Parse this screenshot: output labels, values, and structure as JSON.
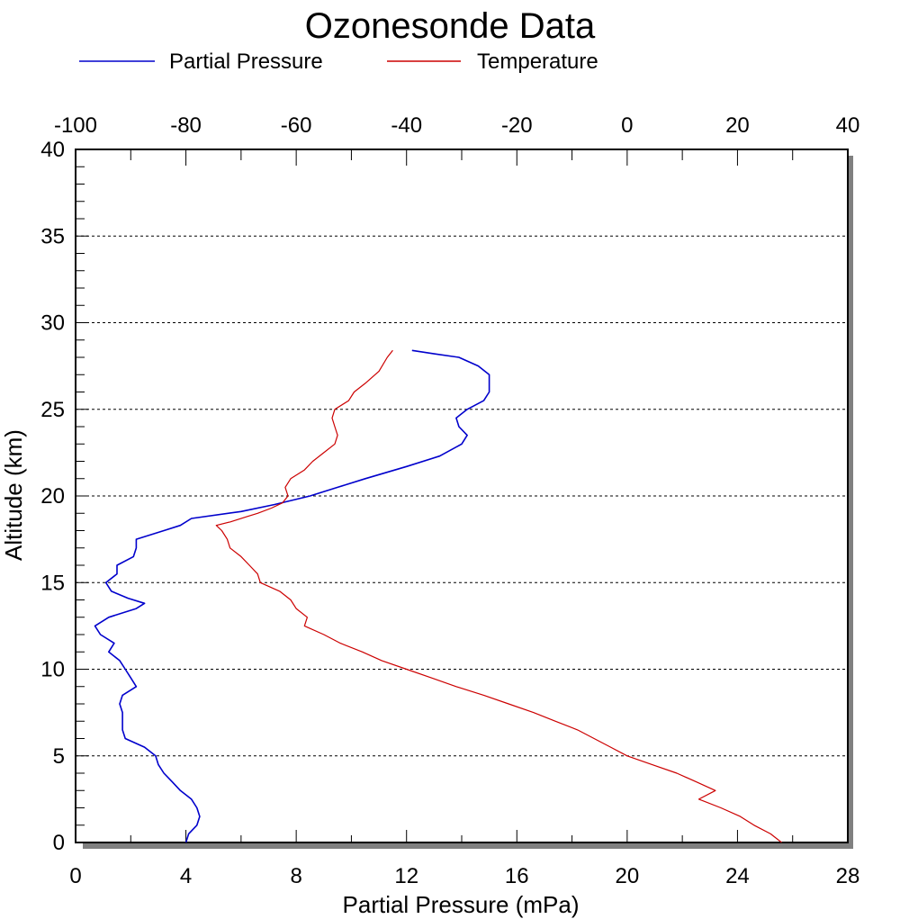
{
  "chart_data": {
    "type": "line",
    "title": "Ozonesonde Data",
    "ylabel": "Altitude (km)",
    "xlabel_bottom": "Partial Pressure (mPa)",
    "xlabel_top": "",
    "grid": "horizontal dotted lines",
    "legend_position": "top",
    "bottom_axis": {
      "min": 0,
      "max": 28,
      "ticks": [
        "0",
        "4",
        "8",
        "12",
        "16",
        "20",
        "24",
        "28"
      ]
    },
    "top_axis": {
      "min": -100,
      "max": 40,
      "ticks": [
        "-100",
        "-80",
        "-60",
        "-40",
        "-20",
        "0",
        "20",
        "40"
      ]
    },
    "left_axis": {
      "min": 0,
      "max": 40,
      "ticks": [
        "0",
        "5",
        "10",
        "15",
        "20",
        "25",
        "30",
        "35",
        "40"
      ]
    },
    "series": [
      {
        "name": "Partial Pressure",
        "axis": "bottom",
        "color": "#0000cc",
        "points": [
          [
            4.0,
            0.0
          ],
          [
            4.1,
            0.5
          ],
          [
            4.4,
            1.0
          ],
          [
            4.5,
            1.5
          ],
          [
            4.4,
            2.0
          ],
          [
            4.2,
            2.5
          ],
          [
            3.8,
            3.0
          ],
          [
            3.5,
            3.5
          ],
          [
            3.2,
            4.0
          ],
          [
            3.0,
            4.5
          ],
          [
            2.9,
            5.0
          ],
          [
            2.5,
            5.5
          ],
          [
            1.8,
            6.0
          ],
          [
            1.7,
            6.5
          ],
          [
            1.7,
            7.0
          ],
          [
            1.7,
            7.5
          ],
          [
            1.6,
            8.0
          ],
          [
            1.7,
            8.5
          ],
          [
            2.2,
            9.0
          ],
          [
            2.0,
            9.5
          ],
          [
            1.8,
            10.0
          ],
          [
            1.6,
            10.5
          ],
          [
            1.2,
            11.0
          ],
          [
            1.4,
            11.5
          ],
          [
            0.9,
            12.0
          ],
          [
            0.7,
            12.5
          ],
          [
            1.2,
            13.0
          ],
          [
            2.2,
            13.5
          ],
          [
            2.5,
            13.8
          ],
          [
            1.9,
            14.1
          ],
          [
            1.3,
            14.5
          ],
          [
            1.1,
            15.0
          ],
          [
            1.5,
            15.5
          ],
          [
            1.5,
            16.0
          ],
          [
            2.1,
            16.5
          ],
          [
            2.2,
            17.0
          ],
          [
            2.2,
            17.5
          ],
          [
            3.2,
            18.0
          ],
          [
            3.8,
            18.3
          ],
          [
            4.2,
            18.7
          ],
          [
            6.0,
            19.1
          ],
          [
            7.2,
            19.5
          ],
          [
            8.5,
            20.0
          ],
          [
            9.5,
            20.5
          ],
          [
            10.5,
            21.0
          ],
          [
            12.0,
            21.7
          ],
          [
            13.2,
            22.3
          ],
          [
            14.0,
            23.0
          ],
          [
            14.2,
            23.5
          ],
          [
            13.9,
            24.0
          ],
          [
            13.8,
            24.5
          ],
          [
            14.2,
            25.0
          ],
          [
            14.8,
            25.5
          ],
          [
            15.0,
            26.0
          ],
          [
            15.0,
            26.5
          ],
          [
            15.0,
            27.0
          ],
          [
            14.6,
            27.5
          ],
          [
            13.9,
            28.0
          ],
          [
            13.0,
            28.2
          ],
          [
            12.2,
            28.4
          ]
        ]
      },
      {
        "name": "Temperature",
        "axis": "top",
        "color": "#cc0000",
        "points": [
          [
            -42.5,
            28.4
          ],
          [
            -43.5,
            28.0
          ],
          [
            -45.0,
            27.2
          ],
          [
            -47.5,
            26.5
          ],
          [
            -49.5,
            26.0
          ],
          [
            -50.5,
            25.5
          ],
          [
            -53.0,
            25.0
          ],
          [
            -53.5,
            24.5
          ],
          [
            -53.0,
            24.0
          ],
          [
            -52.5,
            23.5
          ],
          [
            -53.0,
            23.0
          ],
          [
            -55.0,
            22.5
          ],
          [
            -57.0,
            22.0
          ],
          [
            -58.5,
            21.5
          ],
          [
            -61.0,
            21.0
          ],
          [
            -62.0,
            20.5
          ],
          [
            -61.5,
            20.0
          ],
          [
            -62.5,
            19.6
          ],
          [
            -64.5,
            19.3
          ],
          [
            -67.0,
            19.0
          ],
          [
            -69.0,
            18.8
          ],
          [
            -72.0,
            18.5
          ],
          [
            -74.5,
            18.3
          ],
          [
            -73.5,
            18.0
          ],
          [
            -72.5,
            17.5
          ],
          [
            -72.0,
            17.0
          ],
          [
            -70.0,
            16.5
          ],
          [
            -68.5,
            16.0
          ],
          [
            -67.0,
            15.5
          ],
          [
            -66.5,
            15.0
          ],
          [
            -63.0,
            14.5
          ],
          [
            -61.0,
            14.0
          ],
          [
            -60.0,
            13.5
          ],
          [
            -58.0,
            13.0
          ],
          [
            -58.5,
            12.5
          ],
          [
            -55.0,
            12.0
          ],
          [
            -52.0,
            11.5
          ],
          [
            -48.0,
            11.0
          ],
          [
            -44.5,
            10.5
          ],
          [
            -40.0,
            10.0
          ],
          [
            -35.5,
            9.5
          ],
          [
            -31.0,
            9.0
          ],
          [
            -26.0,
            8.5
          ],
          [
            -21.5,
            8.0
          ],
          [
            -17.0,
            7.5
          ],
          [
            -13.0,
            7.0
          ],
          [
            -9.0,
            6.5
          ],
          [
            -6.0,
            6.0
          ],
          [
            -3.0,
            5.5
          ],
          [
            0.0,
            5.0
          ],
          [
            4.5,
            4.5
          ],
          [
            9.0,
            4.0
          ],
          [
            12.5,
            3.5
          ],
          [
            16.0,
            3.0
          ],
          [
            13.0,
            2.5
          ],
          [
            17.0,
            2.0
          ],
          [
            20.5,
            1.5
          ],
          [
            23.0,
            1.0
          ],
          [
            26.0,
            0.5
          ],
          [
            28.0,
            0.0
          ]
        ]
      }
    ]
  }
}
